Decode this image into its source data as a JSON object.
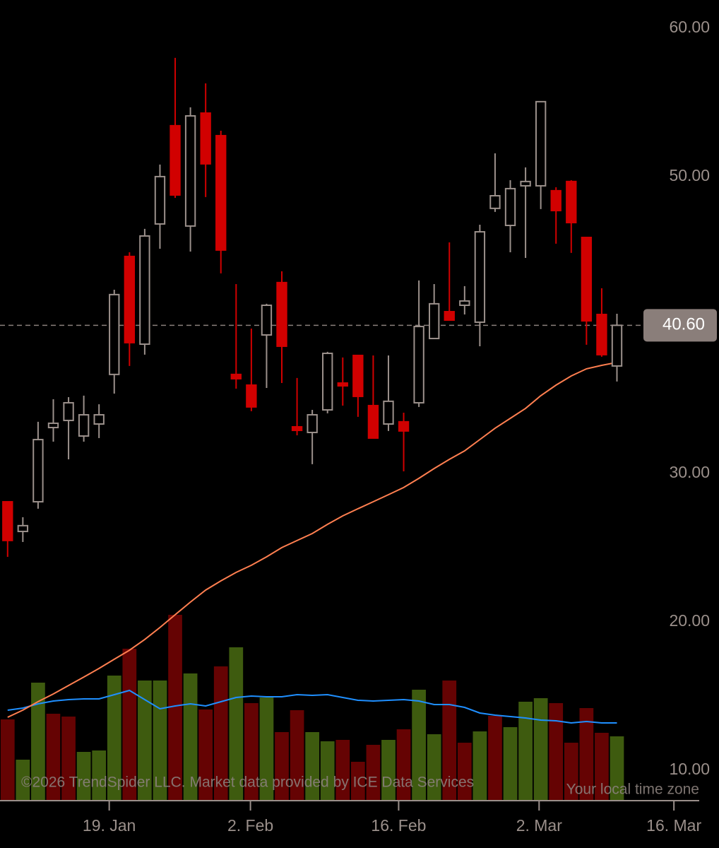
{
  "chart_data": {
    "type": "candlestick",
    "categories": [
      null,
      null,
      null,
      null,
      null,
      null,
      null,
      null,
      null,
      null,
      null,
      null,
      null,
      null,
      null,
      null,
      null,
      null,
      null,
      null,
      null,
      null,
      null,
      null,
      null,
      null,
      null,
      null,
      null,
      null,
      null,
      null,
      null,
      null,
      null,
      null,
      null,
      null,
      null,
      null,
      null
    ],
    "xlim": [
      -0.5,
      46.7
    ],
    "xticks": [
      {
        "value": 6.67,
        "label": "19. Jan"
      },
      {
        "value": 15.94,
        "label": "2. Feb"
      },
      {
        "value": 25.67,
        "label": "16. Feb"
      },
      {
        "value": 34.89,
        "label": "2. Mar"
      },
      {
        "value": 43.74,
        "label": "16. Mar"
      }
    ],
    "ylim": [
      8.57,
      62.52
    ],
    "yticks": [
      {
        "value": 10,
        "label": "10.00"
      },
      {
        "value": 20,
        "label": "20.00"
      },
      {
        "value": 30,
        "label": "30.00"
      },
      {
        "value": 50,
        "label": "50.00"
      },
      {
        "value": 60,
        "label": "60.00"
      }
    ],
    "open": [
      28.71,
      26.71,
      28.71,
      33.71,
      34.19,
      33.14,
      33.95,
      37.29,
      45.24,
      39.33,
      47.43,
      54.05,
      47.29,
      54.9,
      53.38,
      37.29,
      36.57,
      39.95,
      43.48,
      33.76,
      33.38,
      34.9,
      36.71,
      38.57,
      35.19,
      33.95,
      34.1,
      35.38,
      39.71,
      41.52,
      41.95,
      40.81,
      48.48,
      47.33,
      50.0,
      50.0,
      49.67,
      50.29,
      46.52,
      41.33,
      37.86
    ],
    "high": [
      28.71,
      27.67,
      34.1,
      35.62,
      35.76,
      35.86,
      35.28,
      43.0,
      45.52,
      47.1,
      51.43,
      58.62,
      55.29,
      56.9,
      53.71,
      43.38,
      40.38,
      42.05,
      44.24,
      37.05,
      34.9,
      38.81,
      38.43,
      38.57,
      38.57,
      38.57,
      34.71,
      43.62,
      43.38,
      46.19,
      43.24,
      47.38,
      52.19,
      50.38,
      51.24,
      55.67,
      49.9,
      50.38,
      46.52,
      43.1,
      41.38
    ],
    "low": [
      25.0,
      26.0,
      28.24,
      32.76,
      31.57,
      32.76,
      33.0,
      36.0,
      37.86,
      38.62,
      45.76,
      49.19,
      45.57,
      49.24,
      44.1,
      36.33,
      34.81,
      36.38,
      36.71,
      33.19,
      31.24,
      34.67,
      35.19,
      34.43,
      33.0,
      33.48,
      30.76,
      35.1,
      39.71,
      40.95,
      41.33,
      39.19,
      48.24,
      45.52,
      45.14,
      48.43,
      46.1,
      45.48,
      39.29,
      38.48,
      36.81
    ],
    "close": [
      26.1,
      27.1,
      32.9,
      34.0,
      35.38,
      34.57,
      34.57,
      42.67,
      39.43,
      46.62,
      50.62,
      49.38,
      54.71,
      51.48,
      45.67,
      37.0,
      35.1,
      41.95,
      39.19,
      33.52,
      34.57,
      38.71,
      36.52,
      35.81,
      33.0,
      35.48,
      33.48,
      40.52,
      42.05,
      40.95,
      42.24,
      46.9,
      49.33,
      49.81,
      50.29,
      55.67,
      48.33,
      47.52,
      40.9,
      38.62,
      40.6
    ],
    "up_color": "#9b908b",
    "down_color": "#d10000",
    "moving_average": {
      "color": "#ff7f50",
      "values": [
        14.19,
        14.67,
        15.24,
        15.76,
        16.33,
        16.9,
        17.48,
        18.1,
        18.71,
        19.43,
        20.24,
        21.1,
        21.95,
        22.76,
        23.38,
        23.95,
        24.43,
        25.0,
        25.62,
        26.1,
        26.57,
        27.19,
        27.76,
        28.24,
        28.71,
        29.19,
        29.67,
        30.29,
        30.95,
        31.57,
        32.14,
        32.9,
        33.67,
        34.33,
        35.0,
        35.86,
        36.57,
        37.19,
        37.67,
        37.9,
        38.1
      ]
    },
    "volume": {
      "values": [
        115,
        58,
        167,
        123,
        119,
        69,
        71,
        177,
        215,
        170,
        170,
        263,
        180,
        129,
        190,
        217,
        138,
        146,
        97,
        128,
        97,
        84,
        86,
        55,
        79,
        86,
        101,
        157,
        94,
        170,
        82,
        98,
        120,
        104,
        140,
        145,
        138,
        82,
        131,
        96,
        91
      ],
      "colors": [
        "#650303",
        "#3e5b0f",
        "#3e5b0f",
        "#650303",
        "#650303",
        "#3e5b0f",
        "#3e5b0f",
        "#3e5b0f",
        "#650303",
        "#3e5b0f",
        "#3e5b0f",
        "#650303",
        "#3e5b0f",
        "#650303",
        "#650303",
        "#3e5b0f",
        "#650303",
        "#3e5b0f",
        "#650303",
        "#650303",
        "#3e5b0f",
        "#3e5b0f",
        "#650303",
        "#650303",
        "#650303",
        "#3e5b0f",
        "#650303",
        "#3e5b0f",
        "#3e5b0f",
        "#650303",
        "#650303",
        "#3e5b0f",
        "#650303",
        "#3e5b0f",
        "#3e5b0f",
        "#3e5b0f",
        "#650303",
        "#650303",
        "#650303",
        "#650303",
        "#3e5b0f"
      ]
    },
    "volume_average": {
      "color": "#1f8fff",
      "values": [
        128,
        131,
        137,
        141,
        143,
        144,
        144,
        150,
        156,
        143,
        130,
        134,
        137,
        134,
        140,
        146,
        148,
        147,
        147,
        150,
        149,
        150,
        146,
        142,
        141,
        142,
        143,
        141,
        136,
        136,
        132,
        124,
        121,
        119,
        117,
        114,
        113,
        110,
        112,
        110,
        110
      ]
    },
    "last_price": {
      "value": 40.6,
      "label": "40.60"
    },
    "credits": "©2026 TrendSpider LLC. Market data provided by ICE Data Services",
    "timezone_note": "Your local time zone"
  }
}
